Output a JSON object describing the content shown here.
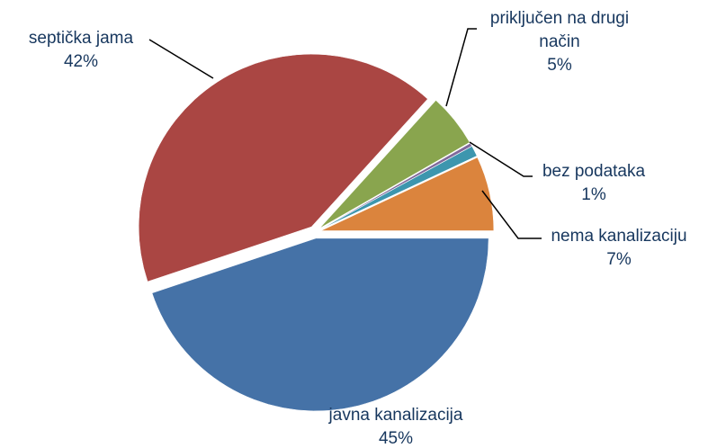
{
  "chart_data": {
    "type": "pie",
    "categories": [
      "javna kanalizacija",
      "septička jama",
      "priključen na drugi način",
      null,
      "bez podataka",
      "nema kanalizaciju"
    ],
    "values": [
      45,
      42,
      5,
      0.3,
      1,
      7
    ],
    "value_labels": [
      "45%",
      "42%",
      "5%",
      null,
      "1%",
      "7%"
    ],
    "colors": [
      "#4572a7",
      "#aa4643",
      "#89a54e",
      "#80699b",
      "#3d96ae",
      "#db843d"
    ]
  }
}
